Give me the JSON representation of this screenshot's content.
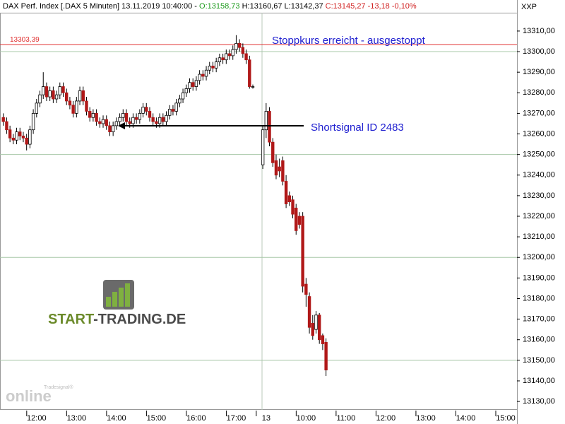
{
  "header": {
    "title": "DAX Perf. Index [.DAX  5 Minuten] 13.11.2019 10:40:00 -",
    "open": "O:13158,73",
    "high": "H:13160,67",
    "low": "L:13142,37",
    "close": "C:13145,27 -13,18 -0,10%",
    "axis_name": "XXP"
  },
  "watermark": {
    "parts": [
      "START",
      "-TRADING.DE"
    ],
    "brand_small": "Tradesignal®",
    "brand_big": "online"
  },
  "chart_data": {
    "type": "candlestick",
    "x": [
      0,
      1,
      2,
      3,
      4,
      5,
      6,
      7,
      8,
      9,
      10,
      11,
      12,
      13,
      14,
      15,
      16,
      17,
      18,
      19,
      20,
      21,
      22,
      23,
      24,
      25,
      26,
      27,
      28,
      29,
      30,
      31,
      32,
      33,
      34,
      35,
      36,
      37,
      38,
      39,
      40,
      41,
      42,
      43,
      44,
      45,
      46,
      47,
      48,
      49,
      50,
      51,
      52,
      53,
      54,
      55,
      56,
      57,
      58,
      59,
      60,
      61,
      62,
      63,
      64,
      65,
      66,
      67,
      68,
      69,
      70,
      71,
      72,
      73,
      74,
      75,
      78,
      79,
      80,
      81,
      82,
      83,
      84,
      85,
      86,
      87,
      88,
      89,
      90,
      91,
      92,
      93,
      94,
      95,
      96,
      97
    ],
    "open": [
      13268,
      13266,
      13262,
      13258,
      13257,
      13261,
      13259,
      13258,
      13255,
      13262,
      13270,
      13275,
      13279,
      13283,
      13278,
      13281,
      13277,
      13279,
      13283,
      13280,
      13276,
      13274,
      13270,
      13276,
      13281,
      13276,
      13271,
      13268,
      13270,
      13266,
      13265,
      13267,
      13264,
      13261,
      13264,
      13266,
      13268,
      13270,
      13266,
      13265,
      13268,
      13267,
      13270,
      13273,
      13271,
      13268,
      13266,
      13265,
      13268,
      13266,
      13269,
      13272,
      13271,
      13275,
      13277,
      13280,
      13282,
      13285,
      13283,
      13286,
      13289,
      13288,
      13291,
      13293,
      13292,
      13295,
      13297,
      13296,
      13299,
      13298,
      13301,
      13304,
      13302,
      13299,
      13296,
      13283,
      13245,
      13262,
      13271,
      13256,
      13247,
      13244,
      13247,
      13237,
      13230,
      13228,
      13224,
      13220,
      13220,
      13187,
      13181,
      13168,
      13165,
      13172,
      13162,
      13158.73
    ],
    "high": [
      13270,
      13268,
      13264,
      13260,
      13263,
      13263,
      13261,
      13260,
      13264,
      13272,
      13277,
      13281,
      13290,
      13285,
      13283,
      13283,
      13281,
      13285,
      13285,
      13282,
      13278,
      13276,
      13278,
      13283,
      13283,
      13278,
      13273,
      13272,
      13272,
      13268,
      13269,
      13269,
      13266,
      13266,
      13268,
      13270,
      13272,
      13272,
      13268,
      13270,
      13270,
      13272,
      13275,
      13275,
      13273,
      13270,
      13268,
      13270,
      13270,
      13271,
      13274,
      13274,
      13277,
      13279,
      13282,
      13284,
      13287,
      13287,
      13288,
      13291,
      13291,
      13293,
      13295,
      13295,
      13297,
      13299,
      13299,
      13301,
      13301,
      13303,
      13308,
      13306,
      13304,
      13301,
      13298,
      13284,
      13264,
      13275,
      13273,
      13258,
      13250,
      13248,
      13249,
      13240,
      13232,
      13230,
      13226,
      13222,
      13222,
      13190,
      13183,
      13172,
      13174,
      13173,
      13163,
      13160.67
    ],
    "low": [
      13264,
      13260,
      13256,
      13255,
      13255,
      13257,
      13256,
      13252,
      13253,
      13260,
      13268,
      13273,
      13277,
      13276,
      13276,
      13275,
      13275,
      13277,
      13278,
      13274,
      13272,
      13268,
      13268,
      13274,
      13274,
      13269,
      13266,
      13266,
      13264,
      13263,
      13263,
      13262,
      13259,
      13259,
      13262,
      13264,
      13266,
      13264,
      13263,
      13263,
      13265,
      13265,
      13268,
      13269,
      13266,
      13264,
      13263,
      13263,
      13264,
      13264,
      13267,
      13269,
      13269,
      13273,
      13275,
      13278,
      13280,
      13281,
      13281,
      13284,
      13286,
      13286,
      13289,
      13290,
      13290,
      13293,
      13294,
      13294,
      13296,
      13296,
      13299,
      13300,
      13297,
      13294,
      13282,
      13282,
      13243,
      13258,
      13254,
      13244,
      13238,
      13239,
      13235,
      13224,
      13225,
      13219,
      13211,
      13214,
      13183,
      13176,
      13163,
      13160,
      13163,
      13158,
      13155,
      13142.37
    ],
    "close": [
      13266,
      13262,
      13258,
      13257,
      13261,
      13259,
      13258,
      13255,
      13262,
      13270,
      13275,
      13279,
      13283,
      13278,
      13281,
      13277,
      13279,
      13283,
      13280,
      13276,
      13274,
      13270,
      13276,
      13281,
      13276,
      13271,
      13268,
      13270,
      13266,
      13265,
      13267,
      13264,
      13261,
      13264,
      13266,
      13268,
      13270,
      13266,
      13265,
      13268,
      13267,
      13270,
      13273,
      13271,
      13268,
      13266,
      13265,
      13268,
      13266,
      13269,
      13272,
      13271,
      13275,
      13277,
      13280,
      13282,
      13285,
      13283,
      13286,
      13289,
      13288,
      13291,
      13293,
      13292,
      13295,
      13297,
      13296,
      13299,
      13298,
      13301,
      13304,
      13302,
      13299,
      13296,
      13283,
      13283,
      13262,
      13271,
      13256,
      13246,
      13240,
      13242,
      13237,
      13226,
      13227,
      13221,
      13213,
      13216,
      13186,
      13182,
      13166,
      13162,
      13172,
      13160,
      13158,
      13145.27
    ],
    "up_color": "#ffffff",
    "down_color": "#b01818",
    "wick_color": "#000000",
    "xlim": [
      -1,
      154.4
    ],
    "xticks": [
      {
        "value": 10,
        "label": "12:00"
      },
      {
        "value": 22,
        "label": "13:00"
      },
      {
        "value": 34,
        "label": "14:00"
      },
      {
        "value": 46,
        "label": "15:00"
      },
      {
        "value": 58,
        "label": "16:00"
      },
      {
        "value": 70,
        "label": "17:00"
      },
      {
        "value": 79,
        "label": "13"
      },
      {
        "value": 91,
        "label": "10:00"
      },
      {
        "value": 103,
        "label": "11:00"
      },
      {
        "value": 115,
        "label": "12:00"
      },
      {
        "value": 127,
        "label": "13:00"
      },
      {
        "value": 139,
        "label": "14:00"
      },
      {
        "value": 151,
        "label": "15:00"
      }
    ],
    "ylim": [
      13126.6,
      13318.9
    ],
    "yticks": [
      {
        "value": 13130,
        "label": "13130,00"
      },
      {
        "value": 13140,
        "label": "13140,00"
      },
      {
        "value": 13150,
        "label": "13150,00"
      },
      {
        "value": 13160,
        "label": "13160,00"
      },
      {
        "value": 13170,
        "label": "13170,00"
      },
      {
        "value": 13180,
        "label": "13180,00"
      },
      {
        "value": 13190,
        "label": "13190,00"
      },
      {
        "value": 13200,
        "label": "13200,00"
      },
      {
        "value": 13210,
        "label": "13210,00"
      },
      {
        "value": 13220,
        "label": "13220,00"
      },
      {
        "value": 13230,
        "label": "13230,00"
      },
      {
        "value": 13240,
        "label": "13240,00"
      },
      {
        "value": 13250,
        "label": "13250,00"
      },
      {
        "value": 13260,
        "label": "13260,00"
      },
      {
        "value": 13270,
        "label": "13270,00"
      },
      {
        "value": 13280,
        "label": "13280,00"
      },
      {
        "value": 13290,
        "label": "13290,00"
      },
      {
        "value": 13300,
        "label": "13300,00"
      },
      {
        "value": 13310,
        "label": "13310,00"
      }
    ],
    "ygrid": [
      13150,
      13200,
      13250,
      13300
    ],
    "stop_level": {
      "value": 13303.39,
      "label": "13303,39",
      "color": "#e03030"
    },
    "annotations": [
      "Stoppkurs erreicht - ausgestoppt",
      "Shortsignal ID 2483"
    ]
  }
}
